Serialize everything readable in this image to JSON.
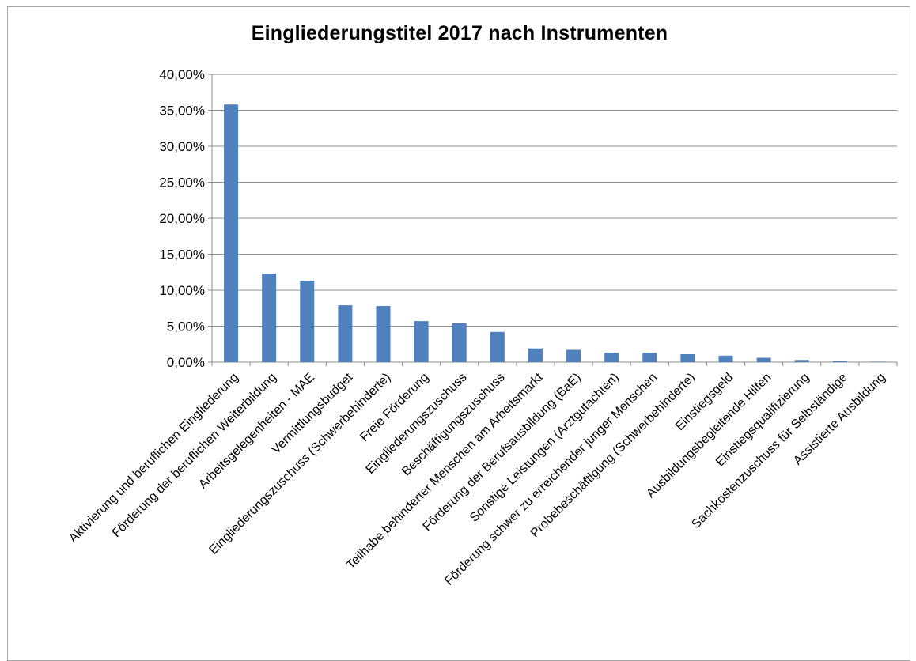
{
  "chart_data": {
    "type": "bar",
    "title": "Eingliederungstitel 2017 nach Instrumenten",
    "xlabel": "",
    "ylabel": "",
    "ylim": [
      0,
      40
    ],
    "y_ticks": [
      "0,00%",
      "5,00%",
      "10,00%",
      "15,00%",
      "20,00%",
      "25,00%",
      "30,00%",
      "35,00%",
      "40,00%"
    ],
    "y_tick_values": [
      0,
      5,
      10,
      15,
      20,
      25,
      30,
      35,
      40
    ],
    "grid": true,
    "legend": "none",
    "bar_color": "#4f81bd",
    "categories": [
      "Aktivierung und beruflichen Eingliederung",
      "Förderung der beruflichen Weiterbildung",
      "Arbeitsgelegenheiten - MAE",
      "Vermittlungsbudget",
      "Eingliederungszuschuss (Schwerbehinderte)",
      "Freie Förderung",
      "Eingliederungszuschuss",
      "Beschäftigungszuschuss",
      "Teilhabe behinderter Menschen am Arbeitsmarkt",
      "Förderung der Berufsausbildung (BaE)",
      "Sonstige Leistungen (Arztgutachten)",
      "Förderung schwer zu erreichender junger Menschen",
      "Probebeschäftigung (Schwerbehinderte)",
      "Einstiegsgeld",
      "Ausbildungsbegleitende Hilfen",
      "Einstiegsqualifizierung",
      "Sachkostenzuschuss für Selbständige",
      "Assistierte Ausbildung"
    ],
    "values": [
      35.8,
      12.3,
      11.3,
      7.9,
      7.8,
      5.7,
      5.4,
      4.2,
      1.9,
      1.7,
      1.3,
      1.3,
      1.1,
      0.9,
      0.6,
      0.3,
      0.2,
      0.05
    ]
  }
}
